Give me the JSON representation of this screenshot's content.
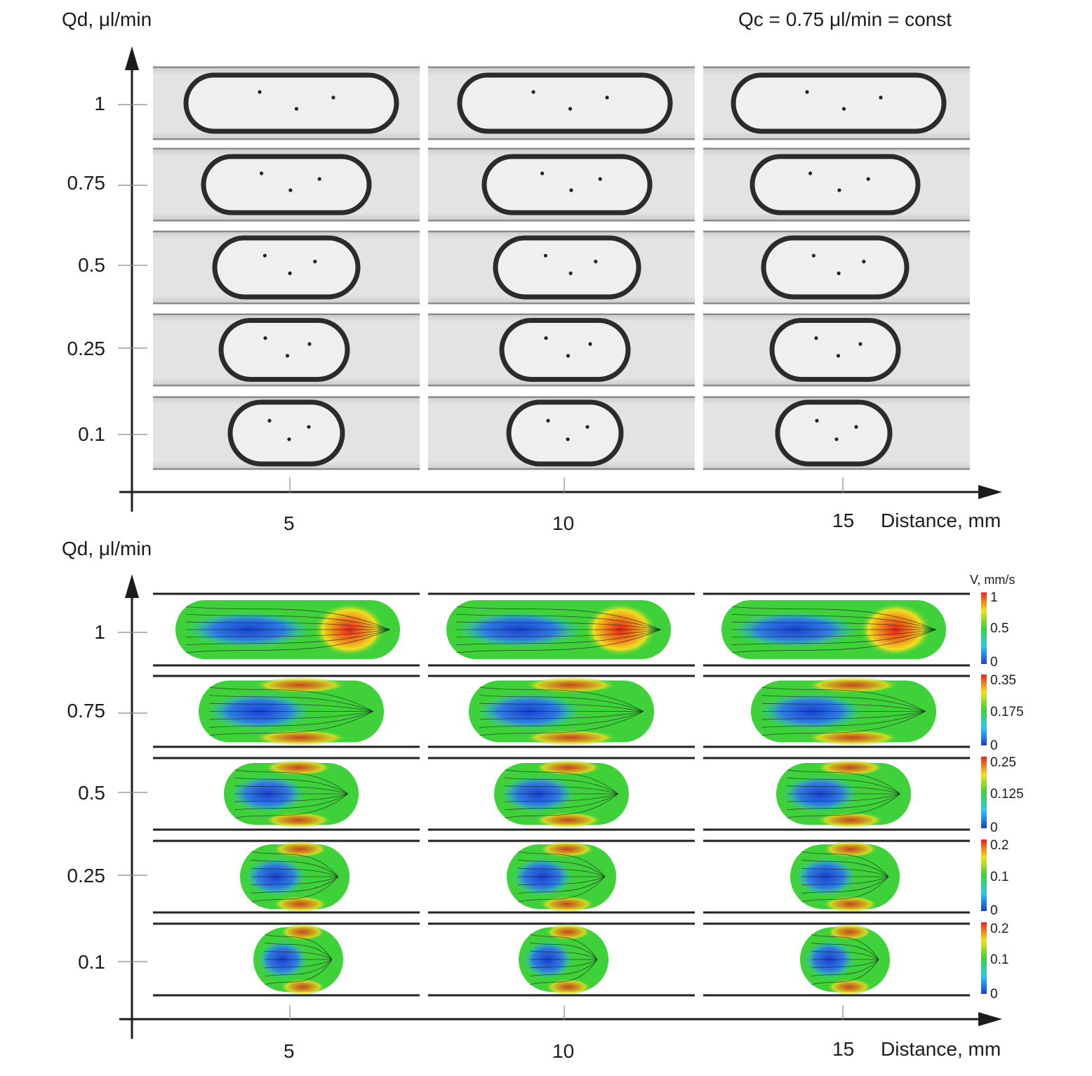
{
  "figure": {
    "top_panel": {
      "y_axis_title": "Qd, μl/min",
      "condition": "Qc = 0.75 μl/min = const",
      "y_ticks": [
        "1",
        "0.75",
        "0.5",
        "0.25",
        "0.1"
      ],
      "x_ticks": [
        "5",
        "10",
        "15"
      ],
      "x_axis_title": "Distance, mm",
      "image_kind": "grayscale droplet photographs"
    },
    "bottom_panel": {
      "y_axis_title": "Qd, μl/min",
      "y_ticks": [
        "1",
        "0.75",
        "0.5",
        "0.25",
        "0.1"
      ],
      "x_ticks": [
        "5",
        "10",
        "15"
      ],
      "x_axis_title": "Distance, mm",
      "colorbar_title": "V, mm/s",
      "colorbars": [
        {
          "max": "1",
          "mid": "0.5",
          "min": "0"
        },
        {
          "max": "0.35",
          "mid": "0.175",
          "min": "0"
        },
        {
          "max": "0.25",
          "mid": "0.125",
          "min": "0"
        },
        {
          "max": "0.2",
          "mid": "0.1",
          "min": "0"
        },
        {
          "max": "0.2",
          "mid": "0.1",
          "min": "0"
        }
      ],
      "colors": {
        "low": "#1a3fd0",
        "mid_low": "#2ec8f0",
        "mid": "#3fd13a",
        "mid_high": "#f0e020",
        "high": "#e8221a"
      }
    }
  }
}
